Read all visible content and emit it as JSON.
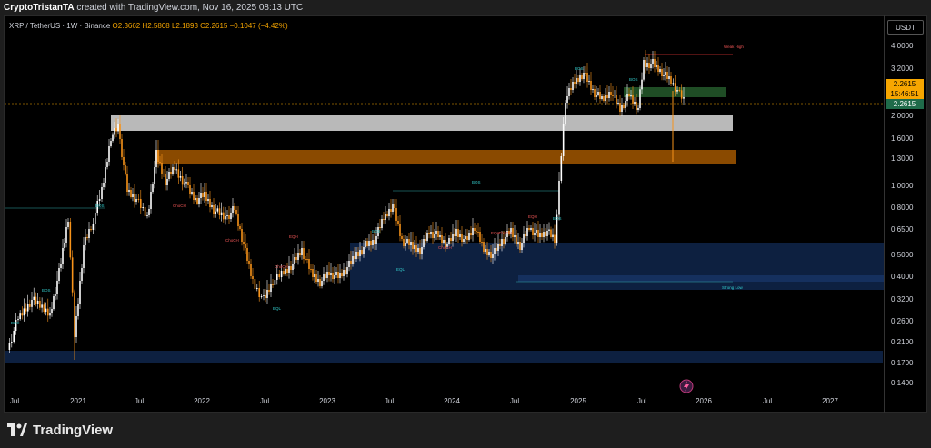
{
  "header": {
    "author": "CryptoTristanTA",
    "created_text": "created with TradingView.com, Nov 16, 2025 08:13 UTC"
  },
  "legend": {
    "symbol": "XRP / TetherUS · 1W · Binance",
    "open": "O2.3662",
    "high": "H2.5808",
    "low": "L2.1893",
    "close": "C2.2615",
    "change": "−0.1047 (−4.42%)"
  },
  "price_axis": {
    "currency": "USDT",
    "scale": "log",
    "ticks": [
      "4.0000",
      "3.2000",
      "2.0000",
      "1.6000",
      "1.3000",
      "1.0000",
      "0.8000",
      "0.6500",
      "0.5000",
      "0.4000",
      "0.3200",
      "0.2600",
      "0.2100",
      "0.1700",
      "0.1400"
    ],
    "last_price": "2.2615",
    "countdown": "15:46:51",
    "last_price_line": "2.2615"
  },
  "time_axis": {
    "labels": [
      "Jul",
      "2021",
      "Jul",
      "2022",
      "Jul",
      "2023",
      "Jul",
      "2024",
      "Jul",
      "2025",
      "Jul",
      "2026",
      "Jul",
      "2027"
    ]
  },
  "annotations": {
    "bos_main": "BOS",
    "bos_labels": [
      "BOS",
      "BOS",
      "BOS",
      "BOS",
      "BOS",
      "BOS",
      "BOS"
    ],
    "choch_labels": [
      "ChoCH",
      "ChoCH",
      "ChoCH",
      "ChoCH",
      "ChoCH"
    ],
    "eq_labels": [
      "EQH",
      "EQL",
      "EQH",
      "EQL",
      "EQH"
    ],
    "weak_high": "Weak High",
    "strong_low": "Strong Low"
  },
  "colors": {
    "up": "#ffffff",
    "down": "#f7931a",
    "supply_zone": "#b9b9b9",
    "orange_zone": "#8a4a00",
    "demand_zone": "#0d2040",
    "green_zone": "#1f4d25",
    "accent": "#f7a600"
  },
  "footer": {
    "brand": "TradingView"
  }
}
